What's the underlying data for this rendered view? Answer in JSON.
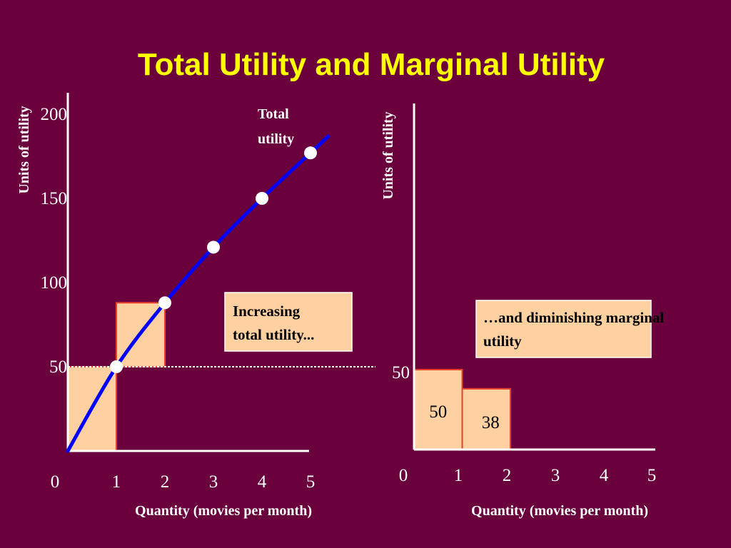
{
  "title": "Total Utility and Marginal Utility",
  "colors": {
    "background": "#6a003c",
    "title": "#ffff00",
    "bar_fill": "#ffd0a0",
    "bar_stroke": "#e8402a",
    "curve": "#0000ff",
    "axis": "#ffffff",
    "text": "#ffffff"
  },
  "chart_data": [
    {
      "type": "line",
      "xlabel": "Quantity (movies per month)",
      "ylabel": "Units of utility",
      "x_ticks": [
        "0",
        "1",
        "2",
        "3",
        "4",
        "5"
      ],
      "y_ticks": [
        "50",
        "100",
        "150",
        "200"
      ],
      "xlim": [
        0,
        5
      ],
      "ylim": [
        0,
        200
      ],
      "series": [
        {
          "name": "Total utility",
          "x": [
            0,
            1,
            2,
            3,
            4,
            5
          ],
          "values": [
            0,
            50,
            88,
            121,
            150,
            177
          ]
        }
      ],
      "step_bars": [
        {
          "x0": 0,
          "x1": 1,
          "bottom": 0,
          "top": 50
        },
        {
          "x0": 1,
          "x1": 2,
          "bottom": 50,
          "top": 88
        }
      ],
      "reference_line_y": 50,
      "annotation": "Increasing total utility..."
    },
    {
      "type": "bar",
      "xlabel": "Quantity (movies per month)",
      "ylabel": "Units of utility",
      "x_ticks": [
        "0",
        "1",
        "2",
        "3",
        "4",
        "5"
      ],
      "y_ticks": [
        "50"
      ],
      "xlim": [
        0,
        5
      ],
      "ylim": [
        0,
        50
      ],
      "bars": [
        {
          "x0": 0,
          "x1": 1,
          "value": 50,
          "label": "50"
        },
        {
          "x0": 1,
          "x1": 2,
          "value": 38,
          "label": "38"
        }
      ],
      "annotation": "…and diminishing marginal utility"
    }
  ]
}
